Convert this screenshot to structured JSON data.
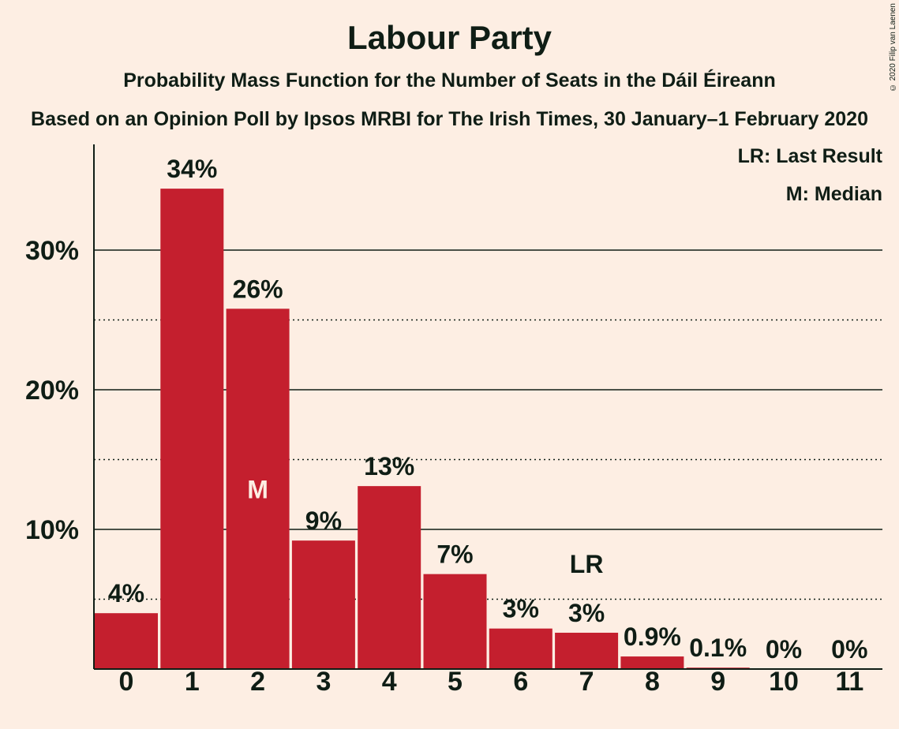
{
  "chart_data": {
    "type": "bar",
    "title": "Labour Party",
    "subtitle": "Probability Mass Function for the Number of Seats in the Dáil Éireann",
    "source": "Based on an Opinion Poll by Ipsos MRBI for The Irish Times, 30 January–1 February 2020",
    "copyright": "© 2020 Filip van Laenen",
    "categories": [
      "0",
      "1",
      "2",
      "3",
      "4",
      "5",
      "6",
      "7",
      "8",
      "9",
      "10",
      "11"
    ],
    "values": [
      4.0,
      34.4,
      25.8,
      9.2,
      13.1,
      6.8,
      2.9,
      2.6,
      0.9,
      0.1,
      0.0,
      0.0
    ],
    "data_labels": [
      "4%",
      "34%",
      "26%",
      "9%",
      "13%",
      "7%",
      "3%",
      "3%",
      "0.9%",
      "0.1%",
      "0%",
      "0%"
    ],
    "yticks": [
      10,
      20,
      30
    ],
    "ytick_labels": [
      "10%",
      "20%",
      "30%"
    ],
    "ylim": [
      0,
      37.5
    ],
    "grid": "solid at 10% steps, dotted at 5% steps",
    "bar_color": "#C41F2E",
    "median_index": 2,
    "median_label": "M",
    "last_result_index": 7,
    "last_result_label": "LR",
    "legend": [
      "LR: Last Result",
      "M: Median"
    ],
    "legend_position": "top-right"
  }
}
